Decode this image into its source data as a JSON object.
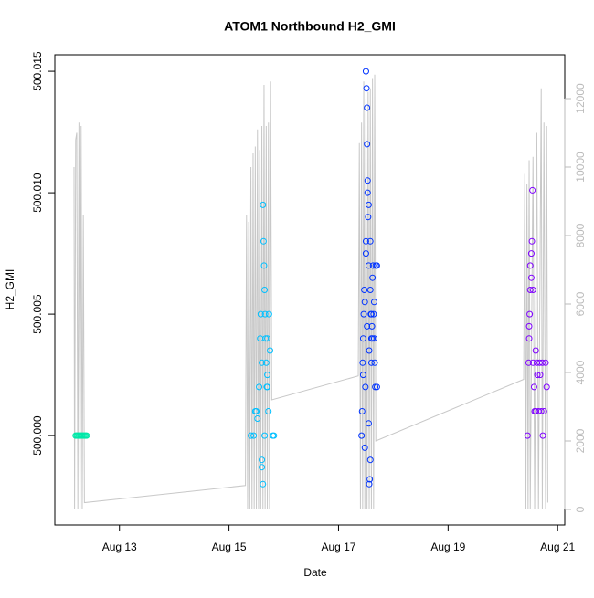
{
  "chart_data": {
    "type": "scatter",
    "title": "ATOM1 Northbound H2_GMI",
    "x_label": "Date",
    "y_label": "H2_GMI",
    "xlim": [
      11.82,
      21.13
    ],
    "xticks": [
      {
        "value": 13,
        "label": "Aug 13"
      },
      {
        "value": 15,
        "label": "Aug 15"
      },
      {
        "value": 17,
        "label": "Aug 17"
      },
      {
        "value": 19,
        "label": "Aug 19"
      },
      {
        "value": 21,
        "label": "Aug 21"
      }
    ],
    "ylim": [
      499.99632,
      500.01568
    ],
    "yticks": [
      {
        "value": 500,
        "label": "500.000"
      },
      500.005,
      {
        "value": 500.01,
        "label": "500.010"
      },
      500.015
    ],
    "y2lim": [
      -453,
      13280
    ],
    "y2ticks": [
      0,
      2000,
      4000,
      6000,
      8000,
      10000,
      12000
    ],
    "series": [
      {
        "color": "#00e8a8",
        "x": [
          12.2,
          12.22,
          12.24,
          12.26,
          12.28,
          12.3,
          12.32,
          12.34,
          12.36,
          12.38,
          12.4
        ],
        "values": [
          500,
          500,
          500,
          500,
          500,
          500,
          500,
          500,
          500,
          500,
          500
        ]
      },
      {
        "color": "#00bfff",
        "x": [
          15.4,
          15.45,
          15.48,
          15.5,
          15.52,
          15.55,
          15.57,
          15.58,
          15.6,
          15.6,
          15.62,
          15.63,
          15.64,
          15.65,
          15.66,
          15.67,
          15.68,
          15.69,
          15.7,
          15.7,
          15.72,
          15.73,
          15.75,
          15.6,
          15.62,
          15.8,
          15.82,
          15.65,
          15.7
        ],
        "values": [
          500.0,
          500.0,
          500.001,
          500.001,
          500.0007,
          500.002,
          500.004,
          500.005,
          500.003,
          499.999,
          500.0095,
          500.008,
          500.007,
          500.006,
          500.005,
          500.004,
          500.003,
          500.002,
          500.004,
          500.0025,
          500.001,
          500.005,
          500.0035,
          499.9987,
          499.998,
          500.0,
          500.0,
          500.0,
          500.002
        ]
      },
      {
        "color": "#0033ff",
        "x": [
          17.42,
          17.43,
          17.44,
          17.45,
          17.46,
          17.47,
          17.48,
          17.49,
          17.5,
          17.5,
          17.51,
          17.52,
          17.52,
          17.53,
          17.53,
          17.54,
          17.55,
          17.55,
          17.56,
          17.57,
          17.58,
          17.58,
          17.59,
          17.6,
          17.6,
          17.61,
          17.62,
          17.63,
          17.64,
          17.65,
          17.66,
          17.67,
          17.68,
          17.7,
          17.7,
          17.45,
          17.5,
          17.55,
          17.58,
          17.48,
          17.52,
          17.56,
          17.6,
          17.62,
          17.65
        ],
        "values": [
          500.0,
          500.001,
          500.003,
          500.004,
          500.005,
          500.006,
          499.9995,
          500.002,
          500.008,
          500.015,
          500.0143,
          500.0135,
          500.012,
          500.0105,
          500.01,
          500.009,
          500.007,
          500.0005,
          499.998,
          499.9982,
          499.999,
          500.006,
          500.005,
          500.004,
          500.003,
          500.0045,
          500.0065,
          500.007,
          500.005,
          500.004,
          500.003,
          500.002,
          500.007,
          500.007,
          500.002,
          500.0025,
          500.0075,
          500.0095,
          500.008,
          500.0055,
          500.0045,
          500.0035,
          500.005,
          500.004,
          500.0055
        ]
      },
      {
        "color": "#7f00ff",
        "x": [
          20.45,
          20.47,
          20.48,
          20.49,
          20.5,
          20.5,
          20.52,
          20.53,
          20.54,
          20.55,
          20.55,
          20.57,
          20.58,
          20.6,
          20.6,
          20.62,
          20.63,
          20.65,
          20.67,
          20.68,
          20.7,
          20.72,
          20.73,
          20.75,
          20.78,
          20.8,
          20.48,
          20.52
        ],
        "values": [
          500.0,
          500.003,
          500.004,
          500.005,
          500.006,
          500.007,
          500.0075,
          500.008,
          500.0101,
          500.006,
          500.003,
          500.002,
          500.001,
          500.0035,
          500.001,
          500.003,
          500.0025,
          500.001,
          500.003,
          500.0025,
          500.001,
          500.003,
          500.0,
          500.001,
          500.003,
          500.002,
          500.0045,
          500.0065
        ]
      },
      {
        "type": "line",
        "axis": "y2",
        "color": "#c8c8c8",
        "x": [
          12.17,
          12.18,
          12.2,
          12.22,
          12.24,
          12.26,
          12.28,
          12.3,
          12.32,
          12.34,
          12.36,
          15.3,
          15.32,
          15.34,
          15.36,
          15.38,
          15.4,
          15.42,
          15.44,
          15.46,
          15.48,
          15.5,
          15.52,
          15.54,
          15.56,
          15.58,
          15.6,
          15.62,
          15.64,
          15.66,
          15.68,
          15.7,
          15.72,
          15.74,
          15.76,
          15.78,
          17.36,
          17.38,
          17.4,
          17.42,
          17.44,
          17.46,
          17.48,
          17.5,
          17.52,
          17.54,
          17.56,
          17.58,
          17.6,
          17.62,
          17.64,
          17.66,
          17.68,
          20.38,
          20.4,
          20.42,
          20.44,
          20.46,
          20.48,
          20.5,
          20.55,
          20.58,
          20.62,
          20.65,
          20.7,
          20.72,
          20.75,
          20.78,
          20.8,
          20.82
        ],
        "values": [
          10000,
          0,
          10800,
          11000,
          0,
          11300,
          0,
          11200,
          0,
          8600,
          200,
          700,
          8600,
          0,
          8400,
          0,
          10000,
          0,
          10400,
          0,
          10600,
          0,
          11100,
          0,
          10500,
          0,
          11200,
          0,
          12400,
          0,
          11200,
          0,
          11300,
          0,
          12500,
          3200,
          3900,
          10700,
          0,
          11300,
          0,
          12500,
          0,
          12000,
          0,
          12200,
          0,
          12300,
          0,
          12600,
          0,
          12700,
          2000,
          3800,
          9800,
          0,
          9500,
          0,
          10200,
          0,
          10300,
          0,
          11000,
          0,
          12300,
          0,
          11300,
          0,
          11200,
          200
        ]
      }
    ]
  }
}
